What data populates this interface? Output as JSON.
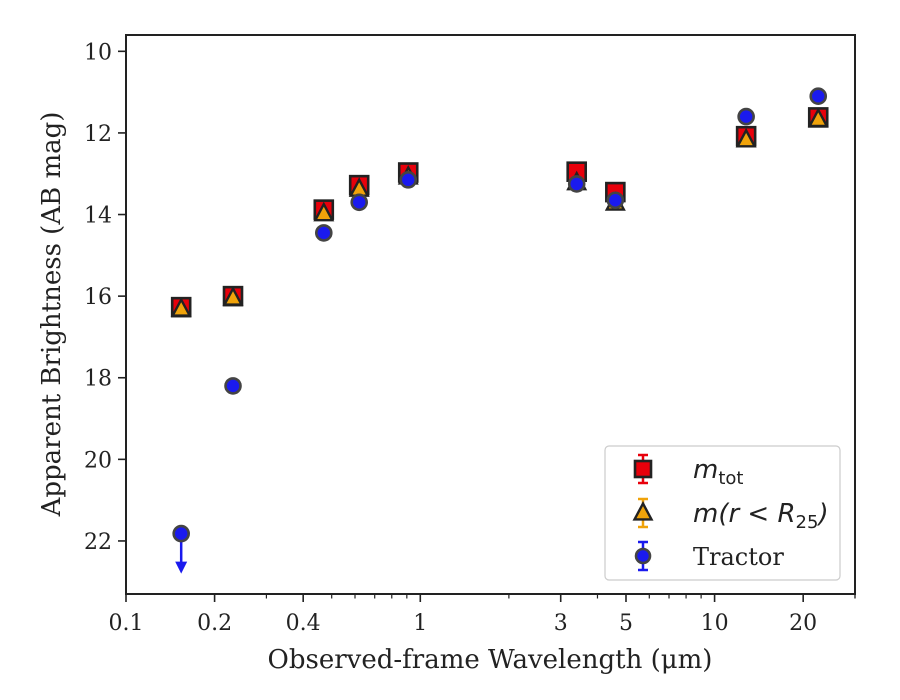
{
  "chart_data": {
    "type": "scatter",
    "xlabel": "Observed-frame Wavelength (μm)",
    "ylabel": "Apparent Brightness (AB mag)",
    "xscale": "log",
    "xlim": [
      0.1,
      30
    ],
    "ylim": [
      23.3,
      9.6
    ],
    "y_inverted": true,
    "x_ticks": [
      {
        "value": 0.1,
        "label": "0.1"
      },
      {
        "value": 0.2,
        "label": "0.2"
      },
      {
        "value": 0.4,
        "label": "0.4"
      },
      {
        "value": 1,
        "label": "1"
      },
      {
        "value": 3,
        "label": "3"
      },
      {
        "value": 5,
        "label": "5"
      },
      {
        "value": 10,
        "label": "10"
      },
      {
        "value": 20,
        "label": "20"
      }
    ],
    "y_ticks": [
      10,
      12,
      14,
      16,
      18,
      20,
      22
    ],
    "grid": false,
    "legend": {
      "position": "bottom-right",
      "entries": [
        {
          "series": "m_tot",
          "text": "m",
          "sub": "tot",
          "math": true
        },
        {
          "series": "m_r25",
          "text": "m(r < R",
          "sub": "25",
          "close": ")",
          "math": true
        },
        {
          "series": "tractor",
          "text": "Tractor",
          "math": false
        }
      ]
    },
    "series": [
      {
        "id": "m_tot",
        "marker": "square",
        "color": "#e8000b",
        "edge_color": "#222222",
        "points": [
          {
            "x": 0.154,
            "y": 16.27
          },
          {
            "x": 0.231,
            "y": 16.0
          },
          {
            "x": 0.47,
            "y": 13.88
          },
          {
            "x": 0.62,
            "y": 13.28
          },
          {
            "x": 0.91,
            "y": 12.97
          },
          {
            "x": 3.4,
            "y": 12.95
          },
          {
            "x": 4.6,
            "y": 13.45
          },
          {
            "x": 12.8,
            "y": 12.08
          },
          {
            "x": 22.5,
            "y": 11.62
          }
        ]
      },
      {
        "id": "m_r25",
        "marker": "triangle",
        "color": "#f0a30a",
        "edge_color": "#222222",
        "points": [
          {
            "x": 0.154,
            "y": 16.32
          },
          {
            "x": 0.231,
            "y": 16.05
          },
          {
            "x": 0.47,
            "y": 13.98
          },
          {
            "x": 0.62,
            "y": 13.38
          },
          {
            "x": 0.91,
            "y": 13.08
          },
          {
            "x": 3.4,
            "y": 13.22
          },
          {
            "x": 4.6,
            "y": 13.72
          },
          {
            "x": 12.8,
            "y": 12.17
          },
          {
            "x": 22.5,
            "y": 11.67
          }
        ]
      },
      {
        "id": "tractor",
        "marker": "circle",
        "color": "#1a1aee",
        "edge_color": "#444444",
        "points": [
          {
            "x": 0.154,
            "y": 21.82,
            "upper_limit": true
          },
          {
            "x": 0.231,
            "y": 18.2
          },
          {
            "x": 0.47,
            "y": 14.45
          },
          {
            "x": 0.62,
            "y": 13.7
          },
          {
            "x": 0.91,
            "y": 13.15
          },
          {
            "x": 3.4,
            "y": 13.25
          },
          {
            "x": 4.6,
            "y": 13.65
          },
          {
            "x": 12.8,
            "y": 11.6
          },
          {
            "x": 22.5,
            "y": 11.1
          }
        ]
      }
    ]
  }
}
